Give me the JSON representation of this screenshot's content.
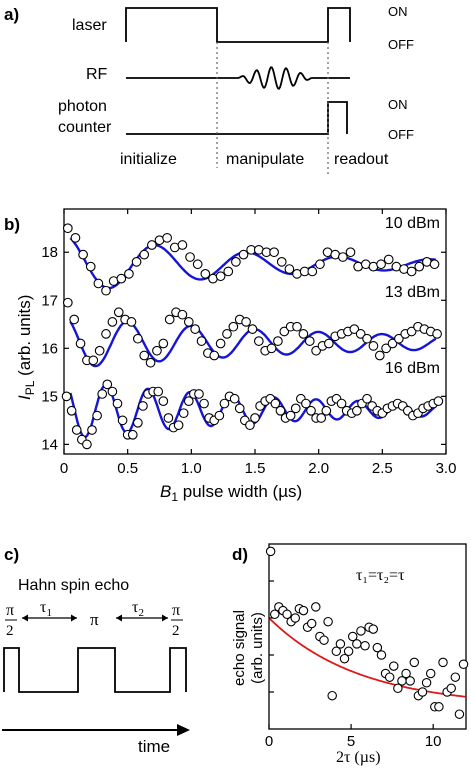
{
  "panel_a": {
    "label": "a)",
    "rows": {
      "laser": "laser",
      "rf": "RF",
      "photon_line1": "photon",
      "photon_line2": "counter"
    },
    "states": {
      "on1": "ON",
      "off1": "OFF",
      "on2": "ON",
      "off2": "OFF"
    },
    "phases": [
      "initialize",
      "manipulate",
      "readout"
    ]
  },
  "panel_b": {
    "label": "b)",
    "ylabel_main": "I",
    "ylabel_sub": "PL",
    "ylabel_rest": " (arb. units)",
    "xlabel_main": "B",
    "xlabel_sub": "1",
    "xlabel_rest": " pulse width (µs)"
  },
  "panel_c": {
    "label": "c)",
    "title": "Hahn spin echo",
    "pi_half": {
      "num": "π",
      "den": "2"
    },
    "pi": "π",
    "tau1": {
      "main": "τ",
      "sub": "1"
    },
    "tau2": {
      "main": "τ",
      "sub": "2"
    },
    "time_label": "time"
  },
  "panel_d": {
    "label": "d)",
    "annotation": "τ₁=τ₂=τ",
    "ylabel_line1": "echo signal",
    "ylabel_line2": "(arb. units)",
    "xlabel": "2τ (µs)"
  },
  "chart_data": [
    {
      "type": "scatter",
      "xlabel": "B1 pulse width (µs)",
      "ylabel": "IPL (arb. units)",
      "xlim": [
        0,
        3.0
      ],
      "ylim": [
        13.8,
        18.9
      ],
      "xticks": [
        0,
        0.5,
        1.0,
        1.5,
        2.0,
        2.5,
        3.0
      ],
      "xtick_labels": [
        "0",
        "0.5",
        "1.0",
        "1.5",
        "2.0",
        "2.5",
        "3.0"
      ],
      "yticks": [
        14,
        15,
        16,
        17,
        18
      ],
      "ytick_labels": [
        "14",
        "15",
        "16",
        "17",
        "18"
      ],
      "series": [
        {
          "name": "10 dBm",
          "fit_color": "#1515d8",
          "offset": 17.75,
          "amp": 0.62,
          "period": 0.72,
          "phase": 0.0,
          "decay": 1.6,
          "x": [
            0.03,
            0.09,
            0.15,
            0.21,
            0.27,
            0.33,
            0.39,
            0.45,
            0.51,
            0.57,
            0.63,
            0.69,
            0.75,
            0.81,
            0.87,
            0.93,
            0.99,
            1.05,
            1.11,
            1.17,
            1.23,
            1.29,
            1.35,
            1.41,
            1.47,
            1.53,
            1.59,
            1.65,
            1.71,
            1.77,
            1.83,
            1.89,
            1.95,
            2.01,
            2.07,
            2.13,
            2.19,
            2.25,
            2.31,
            2.37,
            2.43,
            2.49,
            2.55,
            2.61,
            2.67,
            2.73,
            2.79,
            2.85,
            2.91
          ],
          "y": [
            18.5,
            18.3,
            17.95,
            17.7,
            17.35,
            17.2,
            17.4,
            17.45,
            17.55,
            17.8,
            17.95,
            18.15,
            18.25,
            18.3,
            18.1,
            18.15,
            17.9,
            17.75,
            17.55,
            17.45,
            17.5,
            17.6,
            17.8,
            17.95,
            18.05,
            18.05,
            18.0,
            18.0,
            17.8,
            17.65,
            17.55,
            17.6,
            17.6,
            17.75,
            18.0,
            17.95,
            17.9,
            18.0,
            17.7,
            17.75,
            17.7,
            17.75,
            17.85,
            17.7,
            17.65,
            17.6,
            17.7,
            17.8,
            17.75
          ]
        },
        {
          "name": "13 dBm",
          "fit_color": "#1515d8",
          "offset": 16.12,
          "amp": 0.55,
          "period": 0.5,
          "phase": 0.0,
          "decay": 2.2,
          "x": [
            0.03,
            0.08,
            0.13,
            0.18,
            0.23,
            0.28,
            0.33,
            0.38,
            0.43,
            0.48,
            0.53,
            0.58,
            0.63,
            0.68,
            0.73,
            0.78,
            0.83,
            0.88,
            0.93,
            0.98,
            1.03,
            1.08,
            1.13,
            1.18,
            1.23,
            1.28,
            1.33,
            1.38,
            1.43,
            1.48,
            1.53,
            1.58,
            1.63,
            1.68,
            1.73,
            1.78,
            1.83,
            1.88,
            1.93,
            1.98,
            2.03,
            2.08,
            2.13,
            2.18,
            2.23,
            2.28,
            2.33,
            2.38,
            2.43,
            2.48,
            2.53,
            2.58,
            2.63,
            2.68,
            2.73,
            2.78,
            2.83,
            2.88,
            2.93
          ],
          "y": [
            16.95,
            16.6,
            16.1,
            15.75,
            15.75,
            15.95,
            16.3,
            16.55,
            16.75,
            16.6,
            16.55,
            16.2,
            15.85,
            15.7,
            15.95,
            16.1,
            16.6,
            16.75,
            16.7,
            16.55,
            16.4,
            16.15,
            15.9,
            15.85,
            16.1,
            16.3,
            16.45,
            16.6,
            16.55,
            16.4,
            16.15,
            15.95,
            16.0,
            16.15,
            16.35,
            16.45,
            16.45,
            16.3,
            16.15,
            15.95,
            16.05,
            16.1,
            16.25,
            16.3,
            16.35,
            16.4,
            16.3,
            16.2,
            16.05,
            15.85,
            16.0,
            16.1,
            16.2,
            16.3,
            16.35,
            16.45,
            16.4,
            16.35,
            16.3
          ]
        },
        {
          "name": "16 dBm",
          "fit_color": "#1515d8",
          "offset": 14.72,
          "amp": 0.62,
          "period": 0.33,
          "phase": 0.0,
          "decay": 1.9,
          "x": [
            0.02,
            0.06,
            0.1,
            0.14,
            0.18,
            0.22,
            0.26,
            0.3,
            0.34,
            0.38,
            0.42,
            0.46,
            0.5,
            0.54,
            0.58,
            0.62,
            0.66,
            0.7,
            0.74,
            0.78,
            0.82,
            0.86,
            0.9,
            0.94,
            0.98,
            1.02,
            1.06,
            1.1,
            1.14,
            1.18,
            1.22,
            1.26,
            1.3,
            1.34,
            1.38,
            1.42,
            1.46,
            1.5,
            1.54,
            1.58,
            1.62,
            1.66,
            1.7,
            1.74,
            1.78,
            1.82,
            1.86,
            1.9,
            1.94,
            1.98,
            2.02,
            2.06,
            2.1,
            2.14,
            2.18,
            2.22,
            2.26,
            2.3,
            2.34,
            2.38,
            2.42,
            2.46,
            2.5,
            2.54,
            2.58,
            2.62,
            2.66,
            2.7,
            2.74,
            2.78,
            2.82,
            2.86,
            2.9,
            2.94
          ],
          "y": [
            15.0,
            14.7,
            14.3,
            14.1,
            14.0,
            14.3,
            14.6,
            15.05,
            15.25,
            15.1,
            14.85,
            14.5,
            14.2,
            14.2,
            14.45,
            14.8,
            15.05,
            15.1,
            15.1,
            14.9,
            14.55,
            14.35,
            14.4,
            14.65,
            14.9,
            15.05,
            15.05,
            14.85,
            14.55,
            14.5,
            14.6,
            14.85,
            15.0,
            14.95,
            14.75,
            14.5,
            14.4,
            14.55,
            14.8,
            14.9,
            14.95,
            14.85,
            14.7,
            14.55,
            14.6,
            14.75,
            14.95,
            14.85,
            14.7,
            14.55,
            14.55,
            14.7,
            14.9,
            14.95,
            14.85,
            14.7,
            14.65,
            14.7,
            14.85,
            14.95,
            14.8,
            14.7,
            14.65,
            14.75,
            14.8,
            14.85,
            14.8,
            14.7,
            14.6,
            14.65,
            14.75,
            14.8,
            14.85,
            14.9
          ]
        }
      ]
    },
    {
      "type": "scatter",
      "annotation": "τ1=τ2=τ",
      "xlabel": "2τ (µs)",
      "ylabel": "echo signal (arb. units)",
      "xlim": [
        0,
        12
      ],
      "ylim": [
        0,
        1
      ],
      "xticks": [
        0,
        5,
        10
      ],
      "xtick_labels": [
        "0",
        "5",
        "10"
      ],
      "fit": {
        "color": "#dd1818",
        "form": "exp_decay",
        "a": 0.48,
        "tau": 5.5,
        "c": 0.12
      },
      "x": [
        0.1,
        0.35,
        0.6,
        0.85,
        1.1,
        1.35,
        1.6,
        1.85,
        2.1,
        2.35,
        2.6,
        2.85,
        3.1,
        3.35,
        3.6,
        3.85,
        4.1,
        4.35,
        4.6,
        4.85,
        5.1,
        5.35,
        5.6,
        5.85,
        6.1,
        6.35,
        6.6,
        6.85,
        7.1,
        7.35,
        7.6,
        7.85,
        8.1,
        8.35,
        8.6,
        8.85,
        9.1,
        9.35,
        9.6,
        9.85,
        10.1,
        10.35,
        10.6,
        10.85,
        11.1,
        11.35,
        11.6,
        11.85
      ],
      "y": [
        0.96,
        0.62,
        0.66,
        0.64,
        0.62,
        0.58,
        0.6,
        0.65,
        0.64,
        0.55,
        0.57,
        0.66,
        0.5,
        0.48,
        0.58,
        0.18,
        0.42,
        0.46,
        0.38,
        0.42,
        0.5,
        0.46,
        0.53,
        0.45,
        0.55,
        0.54,
        0.44,
        0.4,
        0.3,
        0.28,
        0.34,
        0.22,
        0.26,
        0.3,
        0.26,
        0.36,
        0.18,
        0.2,
        0.25,
        0.3,
        0.12,
        0.12,
        0.36,
        0.2,
        0.22,
        0.28,
        0.08,
        0.35
      ]
    }
  ]
}
